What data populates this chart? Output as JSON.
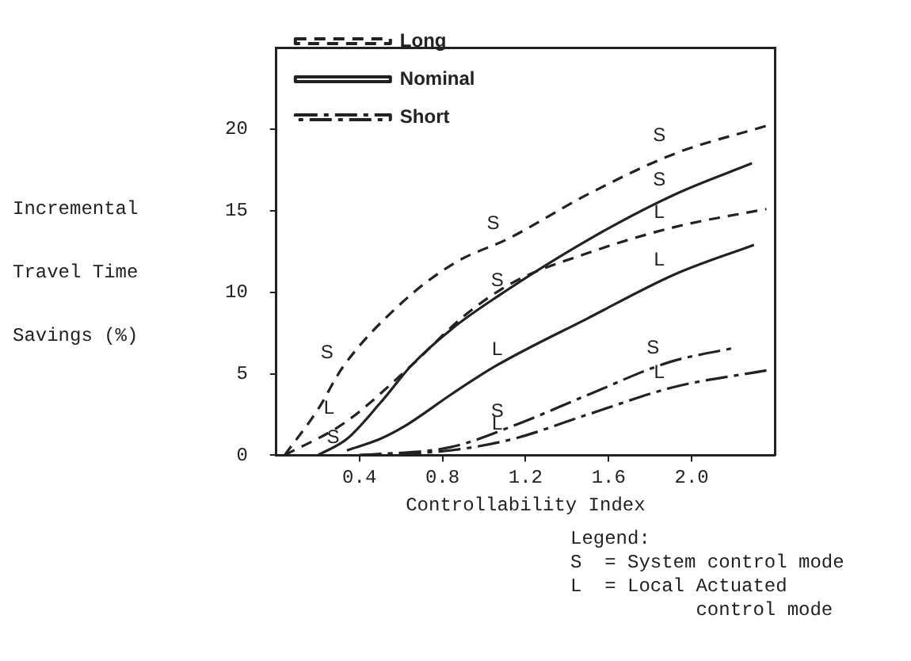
{
  "chart_data": {
    "type": "line",
    "xlabel": "Controllability Index",
    "ylabel": "Incremental Travel Time Savings (%)",
    "xlim": [
      0,
      2.4
    ],
    "xticks": [
      0.4,
      0.8,
      1.2,
      1.6,
      {
        "value": 2,
        "label": "2.0"
      }
    ],
    "ylim": [
      0,
      25
    ],
    "yticks": [
      0,
      5,
      10,
      15,
      20
    ],
    "grid": false,
    "legend": "top left",
    "marker": "none",
    "series": [
      {
        "name": "Long",
        "color": "#222222",
        "line_style": "dashed",
        "x": [
          0.04,
          0.2,
          0.32,
          0.6,
          0.86,
          1.12,
          1.5,
          1.92,
          2.36
        ],
        "values": [
          0,
          2.8,
          5.4,
          9.3,
          11.8,
          13.3,
          16,
          18.5,
          20.2
        ]
      },
      {
        "color": "#222222",
        "line_style": "dashed",
        "x": [
          0.04,
          0.33,
          0.65,
          0.9,
          1.14,
          1.5,
          1.92,
          2.36
        ],
        "values": [
          0,
          2,
          5.5,
          8.5,
          10.6,
          12.4,
          14,
          15.1
        ]
      },
      {
        "name": "Nominal",
        "color": "#222222",
        "line_style": "solid",
        "x": [
          0.2,
          0.34,
          0.5,
          0.65,
          0.85,
          1.06,
          1.5,
          1.92,
          2.29
        ],
        "values": [
          0,
          1,
          3.2,
          5.5,
          7.8,
          9.7,
          13.2,
          16,
          17.9
        ]
      },
      {
        "color": "#222222",
        "line_style": "solid",
        "x": [
          0.34,
          0.5,
          0.62,
          0.85,
          1.06,
          1.5,
          1.92,
          2.3
        ],
        "values": [
          0.3,
          1,
          1.8,
          3.8,
          5.5,
          8.4,
          11.1,
          12.9
        ]
      },
      {
        "name": "Short",
        "color": "#222222",
        "line_style": "dashdot",
        "x": [
          0.4,
          0.84,
          1.14,
          1.5,
          1.89,
          2.21
        ],
        "values": [
          0,
          0.5,
          1.8,
          3.7,
          5.7,
          6.6
        ]
      },
      {
        "color": "#222222",
        "line_style": "dashdot",
        "x": [
          0.4,
          0.84,
          1.14,
          1.5,
          1.92,
          2.36
        ],
        "values": [
          0,
          0.3,
          1,
          2.5,
          4.2,
          5.2
        ]
      }
    ],
    "annotations": [
      {
        "text": "S",
        "x": 0.32,
        "y": 5.4
      },
      {
        "text": "S",
        "x": 1.12,
        "y": 13.3
      },
      {
        "text": "S",
        "x": 1.92,
        "y": 18.7
      },
      {
        "text": "L",
        "x": 0.33,
        "y": 2
      },
      {
        "text": "L",
        "x": 1.92,
        "y": 14
      },
      {
        "text": "S",
        "x": 0.35,
        "y": 0.2
      },
      {
        "text": "S",
        "x": 1.14,
        "y": 9.8
      },
      {
        "text": "S",
        "x": 1.92,
        "y": 16
      },
      {
        "text": "L",
        "x": 1.14,
        "y": 5.6
      },
      {
        "text": "L",
        "x": 1.92,
        "y": 11.1
      },
      {
        "text": "S",
        "x": 1.14,
        "y": 1.8
      },
      {
        "text": "S",
        "x": 1.89,
        "y": 5.7
      },
      {
        "text": "L",
        "x": 1.14,
        "y": 1
      },
      {
        "text": "L",
        "x": 1.92,
        "y": 4.2
      },
      "Legend:\nS  = System control mode\nL  = Local Actuated\n           control mode"
    ]
  }
}
